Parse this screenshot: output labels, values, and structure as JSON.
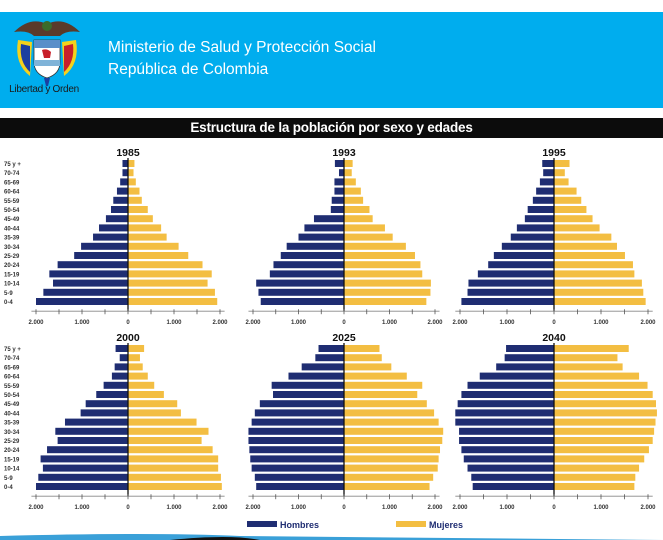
{
  "header": {
    "org_line1": "Ministerio de Salud y Protección Social",
    "org_line2": "República de Colombia",
    "motto": "Libertad y Orden"
  },
  "title": "Estructura de la población por sexo y edades",
  "legend": {
    "male": "Hombres",
    "female": "Mujeres"
  },
  "colors": {
    "male": "#1f2d72",
    "female": "#f3be42",
    "header": "#00adee",
    "title_bar": "#0c0c0c"
  },
  "chart_data": [
    {
      "type": "bar",
      "title": "1985",
      "orientation": "horizontal-pyramid",
      "unit": "thousands",
      "categories": [
        "75 y +",
        "70-74",
        "65-69",
        "60-64",
        "55-59",
        "50-54",
        "45-49",
        "40-44",
        "35-39",
        "30-34",
        "25-29",
        "20-24",
        "15-19",
        "10-14",
        "5-9",
        "0-4"
      ],
      "series": [
        {
          "name": "Hombres",
          "values": [
            120,
            120,
            170,
            240,
            320,
            370,
            480,
            630,
            760,
            1020,
            1170,
            1530,
            1710,
            1630,
            1840,
            2000
          ]
        },
        {
          "name": "Mujeres",
          "values": [
            140,
            120,
            170,
            250,
            300,
            430,
            540,
            720,
            840,
            1100,
            1310,
            1620,
            1820,
            1730,
            1890,
            1940
          ]
        }
      ],
      "xlim": [
        -2000,
        2000
      ],
      "xticks": [
        "2.000",
        "1.000",
        "0",
        "1.000",
        "2.000"
      ]
    },
    {
      "type": "bar",
      "title": "1993",
      "orientation": "horizontal-pyramid",
      "unit": "thousands",
      "categories": [
        "75 y +",
        "70-74",
        "65-69",
        "60-64",
        "55-59",
        "50-54",
        "45-49",
        "40-44",
        "35-39",
        "30-34",
        "25-29",
        "20-24",
        "15-19",
        "10-14",
        "5-9",
        "0-4"
      ],
      "series": [
        {
          "name": "Hombres",
          "values": [
            200,
            110,
            210,
            210,
            270,
            290,
            660,
            870,
            1000,
            1260,
            1390,
            1550,
            1630,
            1930,
            1880,
            1830
          ]
        },
        {
          "name": "Mujeres",
          "values": [
            190,
            170,
            260,
            370,
            420,
            560,
            630,
            900,
            1070,
            1360,
            1560,
            1680,
            1720,
            1910,
            1900,
            1810
          ]
        }
      ],
      "xlim": [
        -2000,
        2000
      ],
      "xticks": [
        "2.000",
        "1.000",
        "0",
        "1.000",
        "2.000"
      ]
    },
    {
      "type": "bar",
      "title": "1995",
      "orientation": "horizontal-pyramid",
      "unit": "thousands",
      "categories": [
        "75 y +",
        "70-74",
        "65-69",
        "60-64",
        "55-59",
        "50-54",
        "45-49",
        "40-44",
        "35-39",
        "30-34",
        "25-29",
        "20-24",
        "15-19",
        "10-14",
        "5-9",
        "0-4"
      ],
      "series": [
        {
          "name": "Hombres",
          "values": [
            250,
            230,
            300,
            380,
            450,
            560,
            620,
            790,
            920,
            1110,
            1280,
            1400,
            1620,
            1820,
            1840,
            1970
          ]
        },
        {
          "name": "Mujeres",
          "values": [
            330,
            230,
            310,
            480,
            580,
            690,
            820,
            970,
            1220,
            1340,
            1510,
            1680,
            1710,
            1870,
            1900,
            1950
          ]
        }
      ],
      "xlim": [
        -2000,
        2000
      ],
      "xticks": [
        "2.000",
        "1.000",
        "0",
        "1.000",
        "2.000"
      ]
    },
    {
      "type": "bar",
      "title": "2000",
      "orientation": "horizontal-pyramid",
      "unit": "thousands",
      "categories": [
        "75 y +",
        "70-74",
        "65-69",
        "60-64",
        "55-59",
        "50-54",
        "45-49",
        "40-44",
        "35-39",
        "30-34",
        "25-29",
        "20-24",
        "15-19",
        "10-14",
        "5-9",
        "0-4"
      ],
      "series": [
        {
          "name": "Hombres",
          "values": [
            270,
            180,
            290,
            350,
            530,
            690,
            920,
            1030,
            1370,
            1580,
            1530,
            1760,
            1900,
            1850,
            1950,
            2000
          ]
        },
        {
          "name": "Mujeres",
          "values": [
            350,
            260,
            320,
            430,
            570,
            780,
            1070,
            1150,
            1490,
            1750,
            1600,
            1840,
            1960,
            1960,
            2020,
            2040
          ]
        }
      ],
      "xlim": [
        -2000,
        2000
      ],
      "xticks": [
        "2.000",
        "1.000",
        "0",
        "1.000",
        "2.000"
      ]
    },
    {
      "type": "bar",
      "title": "2025",
      "orientation": "horizontal-pyramid",
      "unit": "thousands",
      "categories": [
        "75 y +",
        "70-74",
        "65-69",
        "60-64",
        "55-59",
        "50-54",
        "45-49",
        "40-44",
        "35-39",
        "30-34",
        "25-29",
        "20-24",
        "15-19",
        "10-14",
        "5-9",
        "0-4"
      ],
      "series": [
        {
          "name": "Hombres",
          "values": [
            560,
            630,
            930,
            1220,
            1590,
            1560,
            1850,
            1960,
            2030,
            2100,
            2100,
            2080,
            2060,
            2030,
            1960,
            1930
          ]
        },
        {
          "name": "Mujeres",
          "values": [
            780,
            830,
            1040,
            1380,
            1720,
            1610,
            1820,
            1980,
            2080,
            2180,
            2160,
            2110,
            2080,
            2060,
            1960,
            1880
          ]
        }
      ],
      "xlim": [
        -2000,
        2000
      ],
      "xticks": [
        "2.000",
        "1.000",
        "0",
        "1.000",
        "2.000"
      ]
    },
    {
      "type": "bar",
      "title": "2040",
      "orientation": "horizontal-pyramid",
      "unit": "thousands",
      "categories": [
        "75 y +",
        "70-74",
        "65-69",
        "60-64",
        "55-59",
        "50-54",
        "45-49",
        "40-44",
        "35-39",
        "30-34",
        "25-29",
        "20-24",
        "15-19",
        "10-14",
        "5-9",
        "0-4"
      ],
      "series": [
        {
          "name": "Hombres",
          "values": [
            1020,
            1050,
            1230,
            1580,
            1840,
            1970,
            2050,
            2100,
            2100,
            2020,
            2020,
            1970,
            1920,
            1840,
            1760,
            1730
          ]
        },
        {
          "name": "Mujeres",
          "values": [
            1590,
            1350,
            1460,
            1810,
            1990,
            2100,
            2170,
            2190,
            2160,
            2130,
            2100,
            2020,
            1920,
            1810,
            1730,
            1710
          ]
        }
      ],
      "xlim": [
        -2000,
        2000
      ],
      "xticks": [
        "2.000",
        "1.000",
        "0",
        "1.000",
        "2.000"
      ]
    }
  ]
}
